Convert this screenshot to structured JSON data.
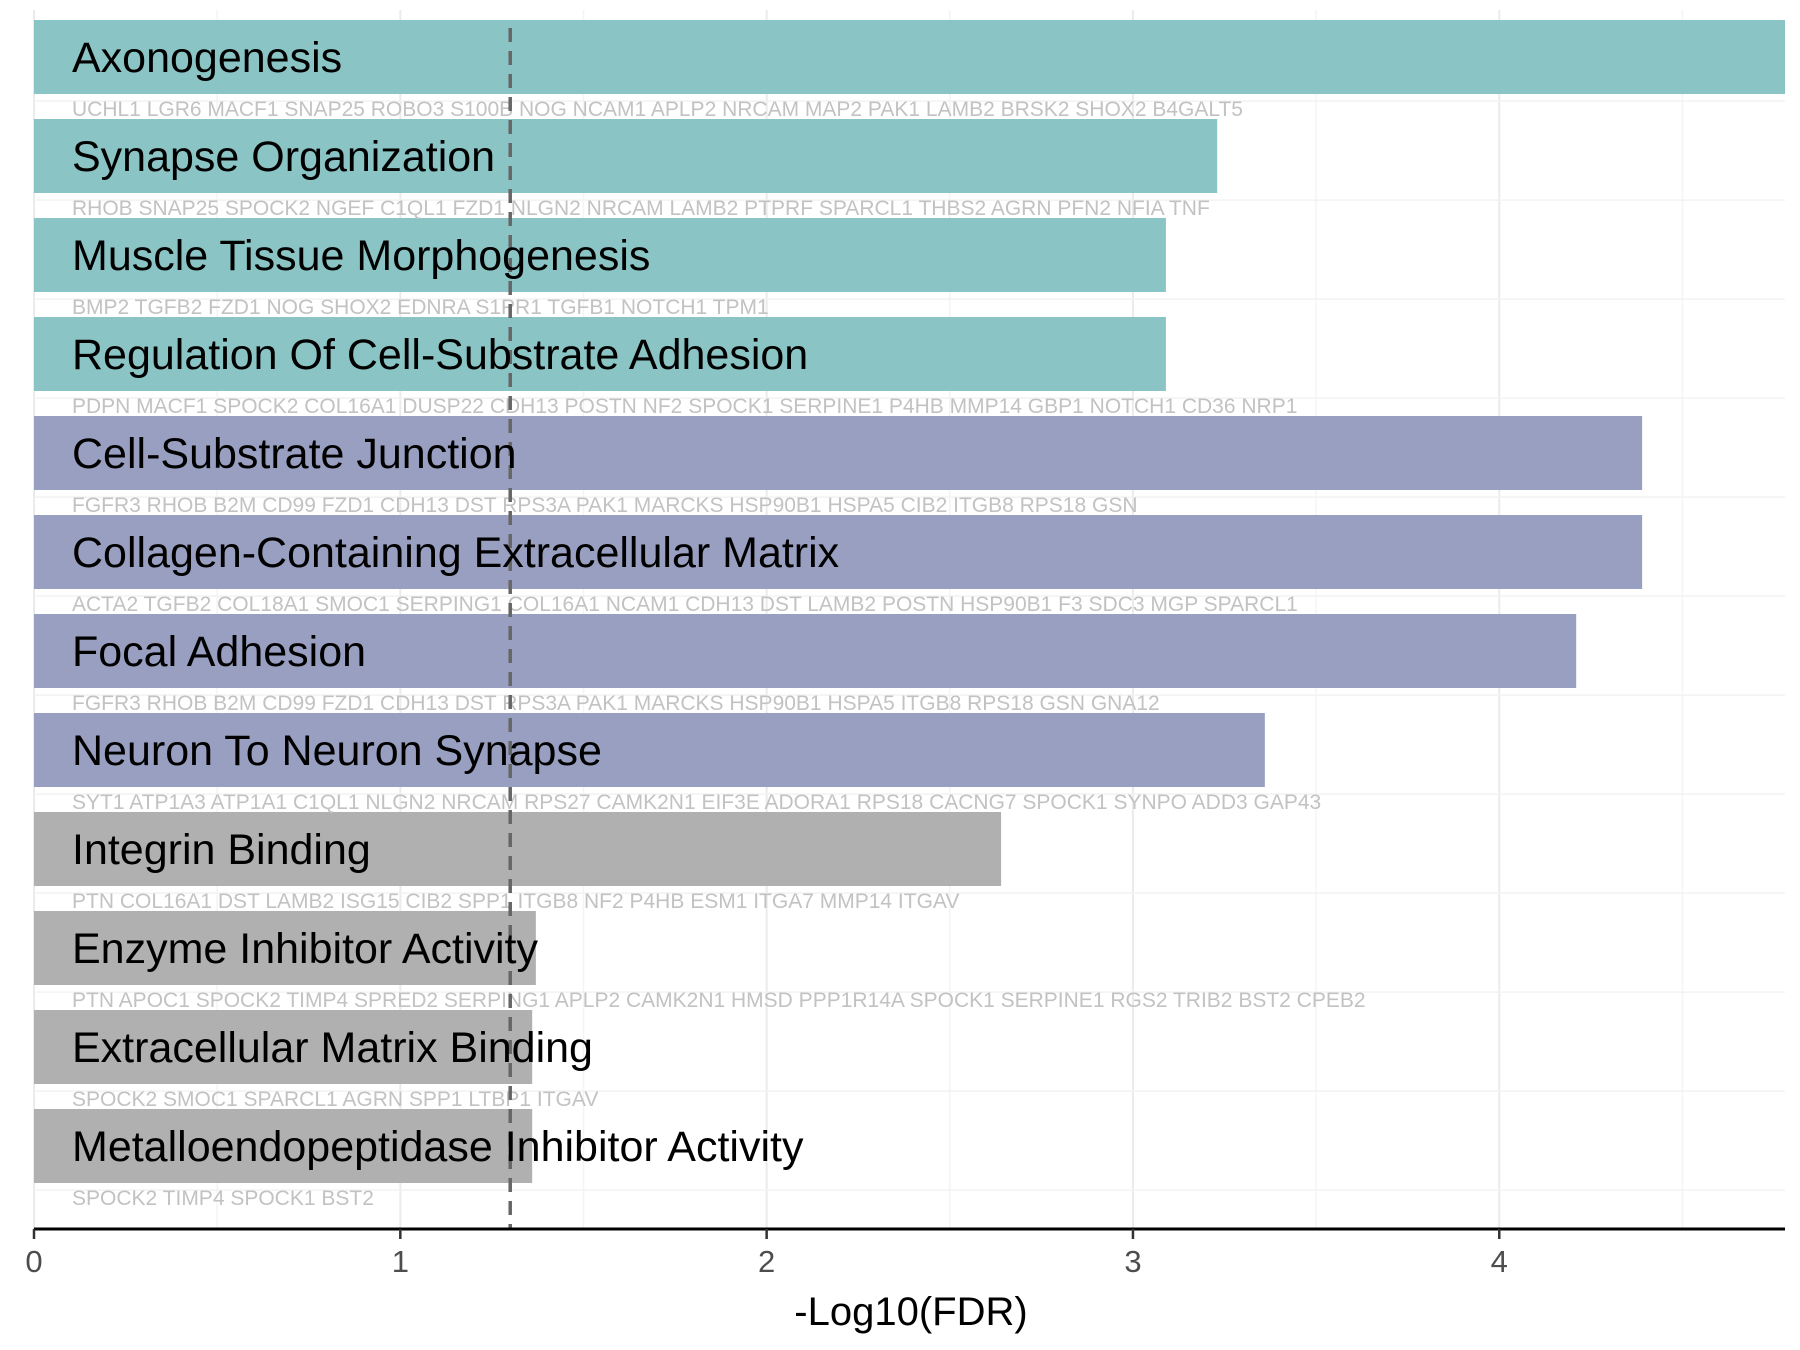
{
  "chart_data": {
    "type": "bar",
    "orientation": "horizontal",
    "xlabel": "-Log10(FDR)",
    "xlim": [
      0,
      4.78
    ],
    "xticks": [
      0,
      1,
      2,
      3,
      4
    ],
    "threshold_line": 1.3,
    "grid": true,
    "colors": {
      "group1": "#8ac4c4",
      "group2": "#999fc0",
      "group3": "#b0b0b0",
      "threshold": "#666666",
      "gene_text": "#c2c2c2"
    },
    "bars": [
      {
        "term": "Axonogenesis",
        "value": 4.78,
        "group": "group1",
        "genes": "UCHL1 LGR6 MACF1 SNAP25 ROBO3 S100B NOG NCAM1 APLP2 NRCAM MAP2 PAK1 LAMB2 BRSK2 SHOX2 B4GALT5"
      },
      {
        "term": "Synapse Organization",
        "value": 3.23,
        "group": "group1",
        "genes": "RHOB SNAP25 SPOCK2 NGEF C1QL1 FZD1 NLGN2 NRCAM LAMB2 PTPRF SPARCL1 THBS2 AGRN PFN2 NFIA TNF"
      },
      {
        "term": "Muscle Tissue Morphogenesis",
        "value": 3.09,
        "group": "group1",
        "genes": "BMP2 TGFB2 FZD1 NOG SHOX2 EDNRA S1PR1 TGFB1 NOTCH1 TPM1"
      },
      {
        "term": "Regulation Of Cell-Substrate Adhesion",
        "value": 3.09,
        "group": "group1",
        "genes": "PDPN MACF1 SPOCK2 COL16A1 DUSP22 CDH13 POSTN NF2 SPOCK1 SERPINE1 P4HB MMP14 GBP1 NOTCH1 CD36 NRP1"
      },
      {
        "term": "Cell-Substrate Junction",
        "value": 4.39,
        "group": "group2",
        "genes": "FGFR3 RHOB B2M CD99 FZD1 CDH13 DST RPS3A PAK1 MARCKS HSP90B1 HSPA5 CIB2 ITGB8 RPS18 GSN"
      },
      {
        "term": "Collagen-Containing Extracellular Matrix",
        "value": 4.39,
        "group": "group2",
        "genes": "ACTA2 TGFB2 COL18A1 SMOC1 SERPING1 COL16A1 NCAM1 CDH13 DST LAMB2 POSTN HSP90B1 F3 SDC3 MGP SPARCL1"
      },
      {
        "term": "Focal Adhesion",
        "value": 4.21,
        "group": "group2",
        "genes": "FGFR3 RHOB B2M CD99 FZD1 CDH13 DST RPS3A PAK1 MARCKS HSP90B1 HSPA5 ITGB8 RPS18 GSN GNA12"
      },
      {
        "term": "Neuron To Neuron Synapse",
        "value": 3.36,
        "group": "group2",
        "genes": "SYT1 ATP1A3 ATP1A1 C1QL1 NLGN2 NRCAM RPS27 CAMK2N1 EIF3E ADORA1 RPS18 CACNG7 SPOCK1 SYNPO ADD3 GAP43"
      },
      {
        "term": "Integrin Binding",
        "value": 2.64,
        "group": "group3",
        "genes": "PTN COL16A1 DST LAMB2 ISG15 CIB2 SPP1 ITGB8 NF2 P4HB ESM1 ITGA7 MMP14 ITGAV"
      },
      {
        "term": "Enzyme Inhibitor Activity",
        "value": 1.37,
        "group": "group3",
        "genes": "PTN APOC1 SPOCK2 TIMP4 SPRED2 SERPING1 APLP2 CAMK2N1 HMSD PPP1R14A SPOCK1 SERPINE1 RGS2 TRIB2 BST2 CPEB2"
      },
      {
        "term": "Extracellular Matrix Binding",
        "value": 1.36,
        "group": "group3",
        "genes": "SPOCK2 SMOC1 SPARCL1 AGRN SPP1 LTBP1 ITGAV"
      },
      {
        "term": "Metalloendopeptidase Inhibitor Activity",
        "value": 1.36,
        "group": "group3",
        "genes": "SPOCK2 TIMP4 SPOCK1 BST2"
      }
    ]
  }
}
